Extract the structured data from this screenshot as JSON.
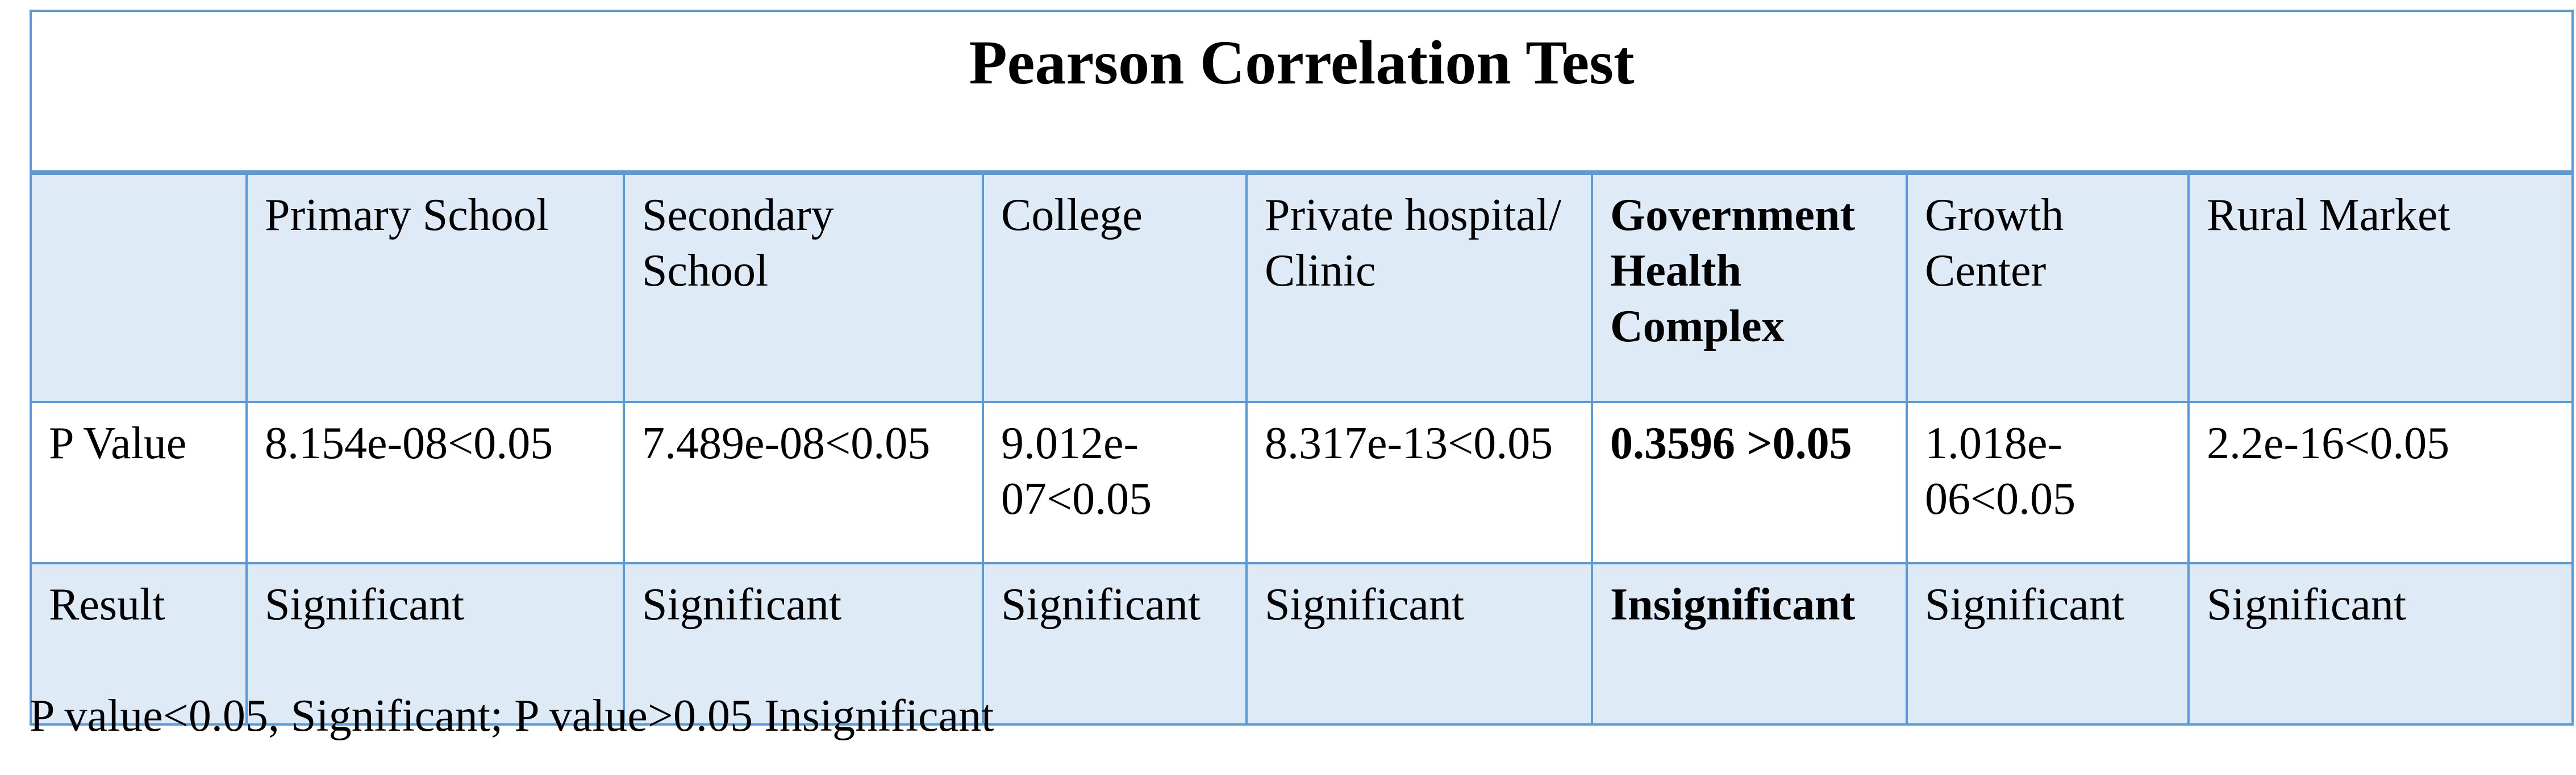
{
  "title": "Pearson Correlation Test",
  "columns": [
    {
      "label": "",
      "bold": false
    },
    {
      "label": "Primary School",
      "bold": false
    },
    {
      "label": "Secondary School",
      "bold": false
    },
    {
      "label": "College",
      "bold": false
    },
    {
      "label": "Private hospital/ Clinic",
      "bold": false
    },
    {
      "label": "Government Health Complex",
      "bold": true
    },
    {
      "label": "Growth Center",
      "bold": false
    },
    {
      "label": "Rural Market",
      "bold": false
    }
  ],
  "rows": [
    {
      "label": "P Value",
      "cells": [
        {
          "text": "8.154e-08<0.05",
          "bold": false
        },
        {
          "text": "7.489e-08<0.05",
          "bold": false
        },
        {
          "text": "9.012e-07<0.05",
          "bold": false
        },
        {
          "text": "8.317e-13<0.05",
          "bold": false
        },
        {
          "text": "0.3596 >0.05",
          "bold": true
        },
        {
          "text": "1.018e-06<0.05",
          "bold": false
        },
        {
          "text": "2.2e-16<0.05",
          "bold": false
        }
      ]
    },
    {
      "label": "Result",
      "cells": [
        {
          "text": "Significant",
          "bold": false
        },
        {
          "text": "Significant",
          "bold": false
        },
        {
          "text": "Significant",
          "bold": false
        },
        {
          "text": "Significant",
          "bold": false
        },
        {
          "text": "Insignificant",
          "bold": true
        },
        {
          "text": "Significant",
          "bold": false
        },
        {
          "text": "Significant",
          "bold": false
        }
      ]
    }
  ],
  "footnote": "P value<0.05, Significant; P value>0.05 Insignificant",
  "colors": {
    "border": "#5b9bd5",
    "shaded_fill": "#deebf7",
    "plain_fill": "#ffffff"
  }
}
